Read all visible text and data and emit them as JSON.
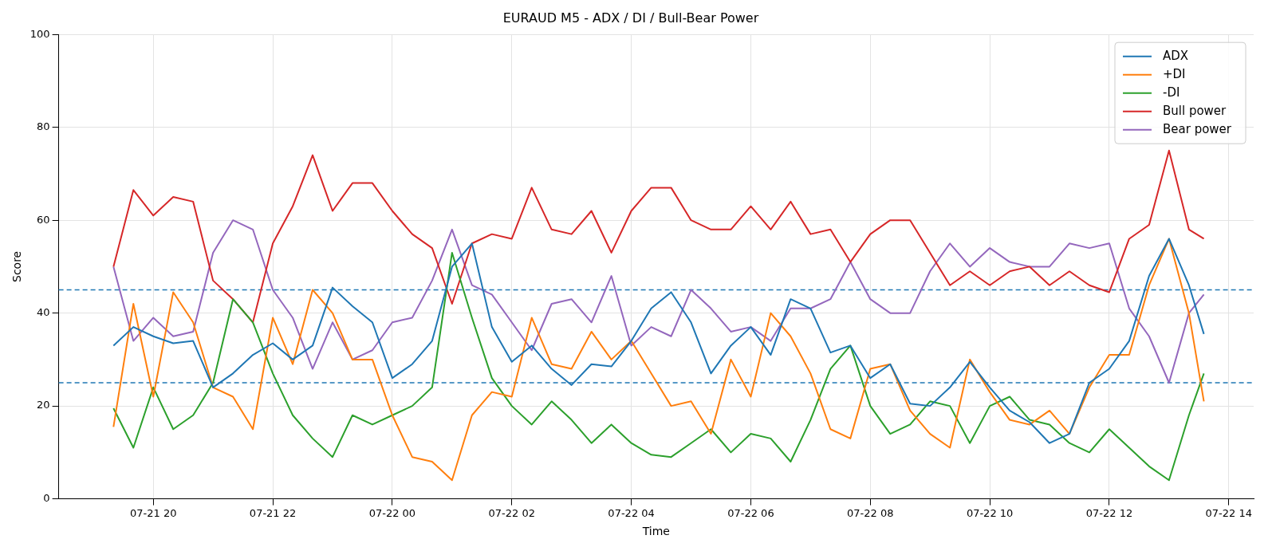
{
  "chart_data": {
    "type": "line",
    "title": "EURAUD M5 - ADX / DI / Bull-Bear Power",
    "xlabel": "Time",
    "ylabel": "Score",
    "x": [
      "--07-21T19:20",
      "--07-21T19:40",
      "--07-21T20:00",
      "--07-21T20:20",
      "--07-21T20:40",
      "--07-21T21:00",
      "--07-21T21:20",
      "--07-21T21:40",
      "--07-21T22:00",
      "--07-21T22:20",
      "--07-21T22:40",
      "--07-21T23:00",
      "--07-21T23:20",
      "--07-21T23:40",
      "--07-22T00:00",
      "--07-22T00:20",
      "--07-22T00:40",
      "--07-22T01:00",
      "--07-22T01:20",
      "--07-22T01:40",
      "--07-22T02:00",
      "--07-22T02:20",
      "--07-22T02:40",
      "--07-22T03:00",
      "--07-22T03:20",
      "--07-22T03:40",
      "--07-22T04:00",
      "--07-22T04:20",
      "--07-22T04:40",
      "--07-22T05:00",
      "--07-22T05:20",
      "--07-22T05:40",
      "--07-22T06:00",
      "--07-22T06:20",
      "--07-22T06:40",
      "--07-22T07:00",
      "--07-22T07:20",
      "--07-22T07:40",
      "--07-22T08:00",
      "--07-22T08:20",
      "--07-22T08:40",
      "--07-22T09:00",
      "--07-22T09:20",
      "--07-22T09:40",
      "--07-22T10:00",
      "--07-22T10:20",
      "--07-22T10:40",
      "--07-22T11:00",
      "--07-22T11:20",
      "--07-22T11:40",
      "--07-22T12:00",
      "--07-22T12:20",
      "--07-22T12:40",
      "--07-22T13:00",
      "--07-22T13:20",
      "--07-22T13:35"
    ],
    "series": [
      {
        "name": "ADX",
        "color": "#1f77b4",
        "values": [
          33,
          37,
          35,
          33.5,
          34,
          24,
          27,
          31,
          33.5,
          30,
          33,
          45.5,
          41.5,
          38,
          26,
          29,
          34,
          50,
          55,
          37,
          29.5,
          33,
          28,
          24.5,
          29,
          28.5,
          34,
          41,
          44.5,
          38,
          27,
          33,
          37,
          31,
          43,
          41,
          31.5,
          33,
          26,
          29,
          20.5,
          20,
          24,
          29.5,
          24,
          19,
          16.5,
          12,
          14,
          25,
          28,
          34,
          48,
          56,
          46,
          35.5
        ]
      },
      {
        "name": "+DI",
        "color": "#ff7f0e",
        "values": [
          15.5,
          42,
          22,
          44.5,
          38,
          24,
          22,
          15,
          39,
          29,
          45,
          40,
          30,
          30,
          18,
          9,
          8,
          4,
          18,
          23,
          22,
          39,
          29,
          28,
          36,
          30,
          34,
          27,
          20,
          21,
          14,
          30,
          22,
          40,
          35,
          27,
          15,
          13,
          28,
          29,
          19,
          14,
          11,
          30,
          23,
          17,
          16,
          19,
          14,
          24,
          31,
          31,
          46,
          56,
          40,
          21
        ]
      },
      {
        "name": "-DI",
        "color": "#2ca02c",
        "values": [
          19.5,
          11,
          24,
          15,
          18,
          25,
          43,
          38,
          27,
          18,
          13,
          9,
          18,
          16,
          18,
          20,
          24,
          53,
          39,
          26,
          20,
          16,
          21,
          17,
          12,
          16,
          12,
          9.5,
          9,
          12,
          15,
          10,
          14,
          13,
          8,
          17,
          28,
          33,
          20,
          14,
          16,
          21,
          20,
          12,
          20,
          22,
          17,
          16,
          12,
          10,
          15,
          11,
          7,
          4,
          18,
          27
        ]
      },
      {
        "name": "Bull power",
        "color": "#d62728",
        "values": [
          50,
          66.5,
          61,
          65,
          64,
          47,
          43,
          38,
          55,
          63,
          74,
          62,
          68,
          68,
          62,
          57,
          54,
          42,
          55,
          57,
          56,
          67,
          58,
          57,
          62,
          53,
          62,
          67,
          67,
          60,
          58,
          58,
          63,
          58,
          64,
          57,
          58,
          51,
          57,
          60,
          60,
          53,
          46,
          49,
          46,
          49,
          50,
          46,
          49,
          46,
          44.5,
          56,
          59,
          75,
          58,
          56
        ]
      },
      {
        "name": "Bear power",
        "color": "#9467bd",
        "values": [
          50,
          34,
          39,
          35,
          36,
          53,
          60,
          58,
          45,
          39,
          28,
          38,
          30,
          32,
          38,
          39,
          47,
          58,
          46,
          44,
          38,
          32,
          42,
          43,
          38,
          48,
          33,
          37,
          35,
          45,
          41,
          36,
          37,
          34,
          41,
          41,
          43,
          51,
          43,
          40,
          40,
          49,
          55,
          50,
          54,
          51,
          50,
          50,
          55,
          54,
          55,
          41,
          35,
          25,
          40,
          44
        ]
      }
    ],
    "xlim": [
      "--07-21T18:25",
      "--07-22T14:25"
    ],
    "xticks": [
      {
        "value": "--07-21T20:00",
        "label": "07-21 20"
      },
      {
        "value": "--07-21T22:00",
        "label": "07-21 22"
      },
      {
        "value": "--07-22T00:00",
        "label": "07-22 00"
      },
      {
        "value": "--07-22T02:00",
        "label": "07-22 02"
      },
      {
        "value": "--07-22T04:00",
        "label": "07-22 04"
      },
      {
        "value": "--07-22T06:00",
        "label": "07-22 06"
      },
      {
        "value": "--07-22T08:00",
        "label": "07-22 08"
      },
      {
        "value": "--07-22T10:00",
        "label": "07-22 10"
      },
      {
        "value": "--07-22T12:00",
        "label": "07-22 12"
      },
      {
        "value": "--07-22T14:00",
        "label": "07-22 14"
      }
    ],
    "ylim": [
      0,
      100
    ],
    "yticks": [
      0,
      20,
      40,
      60,
      80,
      100
    ],
    "ref_lines": [
      {
        "axis": "y",
        "value": 45,
        "color": "#1f77b4",
        "line_style": "dashed"
      },
      {
        "axis": "y",
        "value": 25,
        "color": "#1f77b4",
        "line_style": "dashed"
      }
    ],
    "grid": true,
    "legend": "top right",
    "marker": "none",
    "line_style": "solid"
  }
}
